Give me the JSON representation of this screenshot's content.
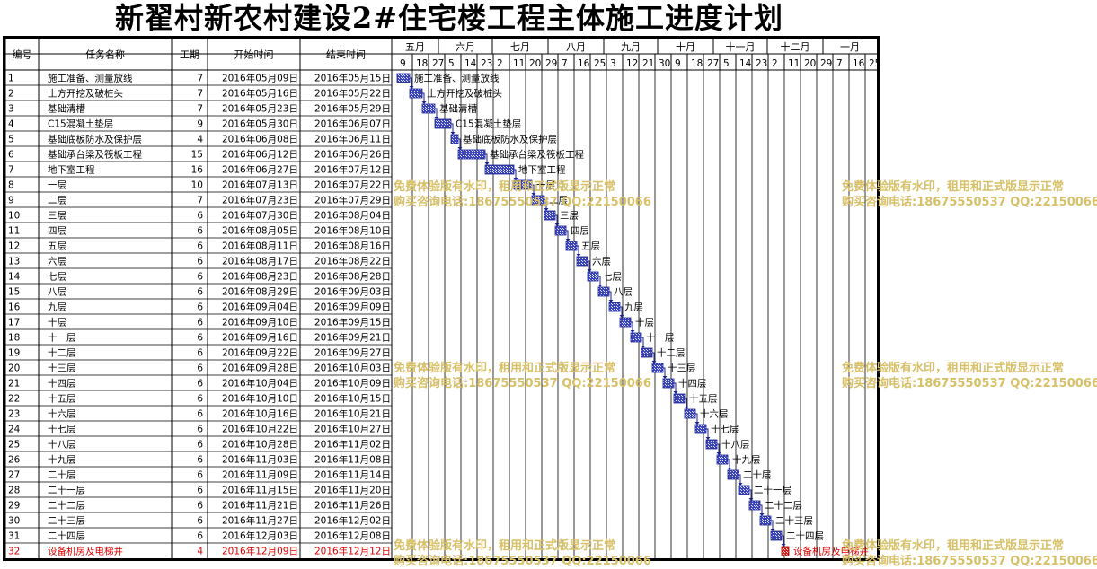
{
  "title": "新翟村新农村建设2#住宅楼工程主体施工进度计划",
  "columns": {
    "id": "编号",
    "name": "任务名称",
    "dur": "工期",
    "start": "开始时间",
    "end": "结束时间"
  },
  "timescale": {
    "months": [
      "五月",
      "六月",
      "七月",
      "八月",
      "九月",
      "十月",
      "十一月",
      "十二月",
      "一月"
    ],
    "days": [
      "9",
      "18",
      "27",
      "5",
      "14",
      "23",
      "2",
      "11",
      "20",
      "29",
      "7",
      "16",
      "25",
      "3",
      "12",
      "21",
      "30",
      "9",
      "18",
      "27",
      "5",
      "14",
      "23",
      "2",
      "11",
      "20",
      "29",
      "7",
      "16",
      "25"
    ]
  },
  "watermark": {
    "line1": "免费体验版有水印，租用和正式版显示正常",
    "line2": "购买咨询电话:18675550537 QQ:22150066"
  },
  "colors": {
    "bar": "#3b44b8",
    "bar_highlight": "#e02020",
    "highlight_text": "#e00000",
    "watermark": "#d7c067",
    "grid": "#000000"
  },
  "chart_data": {
    "type": "gantt",
    "tasks": [
      {
        "id": "1",
        "name": "施工准备、测量放线",
        "dur": "7",
        "start": "2016年05月09日",
        "end": "2016年05月15日"
      },
      {
        "id": "2",
        "name": "土方开挖及破桩头",
        "dur": "7",
        "start": "2016年05月16日",
        "end": "2016年05月22日"
      },
      {
        "id": "3",
        "name": "基础清槽",
        "dur": "7",
        "start": "2016年05月23日",
        "end": "2016年05月29日"
      },
      {
        "id": "4",
        "name": "C15混凝土垫层",
        "dur": "9",
        "start": "2016年05月30日",
        "end": "2016年06月07日"
      },
      {
        "id": "5",
        "name": "基础底板防水及保护层",
        "dur": "4",
        "start": "2016年06月08日",
        "end": "2016年06月11日"
      },
      {
        "id": "6",
        "name": "基础承台梁及筏板工程",
        "dur": "15",
        "start": "2016年06月12日",
        "end": "2016年06月26日"
      },
      {
        "id": "7",
        "name": "地下室工程",
        "dur": "16",
        "start": "2016年06月27日",
        "end": "2016年07月12日"
      },
      {
        "id": "8",
        "name": "一层",
        "dur": "10",
        "start": "2016年07月13日",
        "end": "2016年07月22日"
      },
      {
        "id": "9",
        "name": "二层",
        "dur": "7",
        "start": "2016年07月23日",
        "end": "2016年07月29日"
      },
      {
        "id": "10",
        "name": "三层",
        "dur": "6",
        "start": "2016年07月30日",
        "end": "2016年08月04日"
      },
      {
        "id": "11",
        "name": "四层",
        "dur": "6",
        "start": "2016年08月05日",
        "end": "2016年08月10日"
      },
      {
        "id": "12",
        "name": "五层",
        "dur": "6",
        "start": "2016年08月11日",
        "end": "2016年08月16日"
      },
      {
        "id": "13",
        "name": "六层",
        "dur": "6",
        "start": "2016年08月17日",
        "end": "2016年08月22日"
      },
      {
        "id": "14",
        "name": "七层",
        "dur": "6",
        "start": "2016年08月23日",
        "end": "2016年08月28日"
      },
      {
        "id": "15",
        "name": "八层",
        "dur": "6",
        "start": "2016年08月29日",
        "end": "2016年09月03日"
      },
      {
        "id": "16",
        "name": "九层",
        "dur": "6",
        "start": "2016年09月04日",
        "end": "2016年09月09日"
      },
      {
        "id": "17",
        "name": "十层",
        "dur": "6",
        "start": "2016年09月10日",
        "end": "2016年09月15日"
      },
      {
        "id": "18",
        "name": "十一层",
        "dur": "6",
        "start": "2016年09月16日",
        "end": "2016年09月21日"
      },
      {
        "id": "19",
        "name": "十二层",
        "dur": "6",
        "start": "2016年09月22日",
        "end": "2016年09月27日"
      },
      {
        "id": "20",
        "name": "十三层",
        "dur": "6",
        "start": "2016年09月28日",
        "end": "2016年10月03日"
      },
      {
        "id": "21",
        "name": "十四层",
        "dur": "6",
        "start": "2016年10月04日",
        "end": "2016年10月09日"
      },
      {
        "id": "22",
        "name": "十五层",
        "dur": "6",
        "start": "2016年10月10日",
        "end": "2016年10月15日"
      },
      {
        "id": "23",
        "name": "十六层",
        "dur": "6",
        "start": "2016年10月16日",
        "end": "2016年10月21日"
      },
      {
        "id": "24",
        "name": "十七层",
        "dur": "6",
        "start": "2016年10月22日",
        "end": "2016年10月27日"
      },
      {
        "id": "25",
        "name": "十八层",
        "dur": "6",
        "start": "2016年10月28日",
        "end": "2016年11月02日"
      },
      {
        "id": "26",
        "name": "十九层",
        "dur": "6",
        "start": "2016年11月03日",
        "end": "2016年11月08日"
      },
      {
        "id": "27",
        "name": "二十层",
        "dur": "6",
        "start": "2016年11月09日",
        "end": "2016年11月14日"
      },
      {
        "id": "28",
        "name": "二十一层",
        "dur": "6",
        "start": "2016年11月15日",
        "end": "2016年11月20日"
      },
      {
        "id": "29",
        "name": "二十二层",
        "dur": "6",
        "start": "2016年11月21日",
        "end": "2016年11月26日"
      },
      {
        "id": "30",
        "name": "二十三层",
        "dur": "6",
        "start": "2016年11月27日",
        "end": "2016年12月02日"
      },
      {
        "id": "31",
        "name": "二十四层",
        "dur": "6",
        "start": "2016年12月03日",
        "end": "2016年12月08日"
      },
      {
        "id": "32",
        "name": "设备机房及电梯井",
        "dur": "4",
        "start": "2016年12月09日",
        "end": "2016年12月12日",
        "highlight": true
      }
    ]
  }
}
